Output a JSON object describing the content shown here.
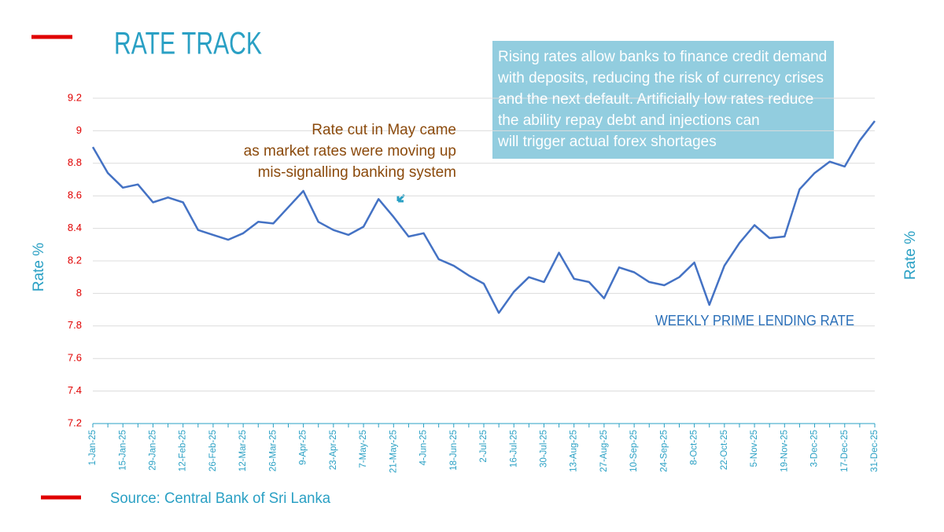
{
  "chart_data": {
    "type": "line",
    "title": "RATE TRACK",
    "y_label": "Rate %",
    "y2_label": "Rate %",
    "source": "Source: Central Bank of Sri Lanka",
    "annotation": [
      "Rate cut in May came",
      "as market rates were moving up",
      "mis-signalling banking system"
    ],
    "note": [
      "Rising rates allow banks to finance credit demand",
      "with deposits, reducing the risk of currency crises",
      "and the next default. Artificially low rates reduce",
      "the ability repay debt and injections can",
      "will trigger actual forex shortages"
    ],
    "categories": [
      "1-Jan-25",
      null,
      "15-Jan-25",
      null,
      "29-Jan-25",
      null,
      "12-Feb-25",
      null,
      "26-Feb-25",
      null,
      "12-Mar-25",
      null,
      "26-Mar-25",
      null,
      "9-Apr-25",
      null,
      "23-Apr-25",
      null,
      "7-May-25",
      null,
      "21-May-25",
      null,
      "4-Jun-25",
      null,
      "18-Jun-25",
      null,
      "2-Jul-25",
      null,
      "16-Jul-25",
      null,
      "30-Jul-25",
      null,
      "13-Aug-25",
      null,
      "27-Aug-25",
      null,
      "10-Sep-25",
      null,
      "24-Sep-25",
      null,
      "8-Oct-25",
      null,
      "22-Oct-25",
      null,
      "5-Nov-25",
      null,
      "19-Nov-25",
      null,
      "3-Dec-25",
      null,
      "17-Dec-25",
      null,
      "31-Dec-25"
    ],
    "series": [
      {
        "name": "WEEKLY PRIME LENDING RATE",
        "color": "#4472c4",
        "values": [
          8.9,
          8.74,
          8.65,
          8.67,
          8.56,
          8.59,
          8.56,
          8.39,
          8.36,
          8.33,
          8.37,
          8.44,
          8.43,
          8.53,
          8.63,
          8.44,
          8.39,
          8.36,
          8.41,
          8.58,
          8.47,
          8.35,
          8.37,
          8.21,
          8.17,
          8.11,
          8.06,
          7.88,
          8.01,
          8.1,
          8.07,
          8.25,
          8.09,
          8.07,
          7.97,
          8.16,
          8.13,
          8.07,
          8.05,
          8.1,
          8.19,
          7.93,
          8.17,
          8.31,
          8.42,
          8.34,
          8.35,
          8.64,
          8.74,
          8.81,
          8.78,
          8.94,
          9.06
        ]
      }
    ],
    "ylim": [
      7.2,
      9.2
    ],
    "yticks": [
      7.2,
      7.4,
      7.6,
      7.8,
      8,
      8.2,
      8.4,
      8.6,
      8.8,
      9,
      9.2
    ],
    "grid": true
  }
}
